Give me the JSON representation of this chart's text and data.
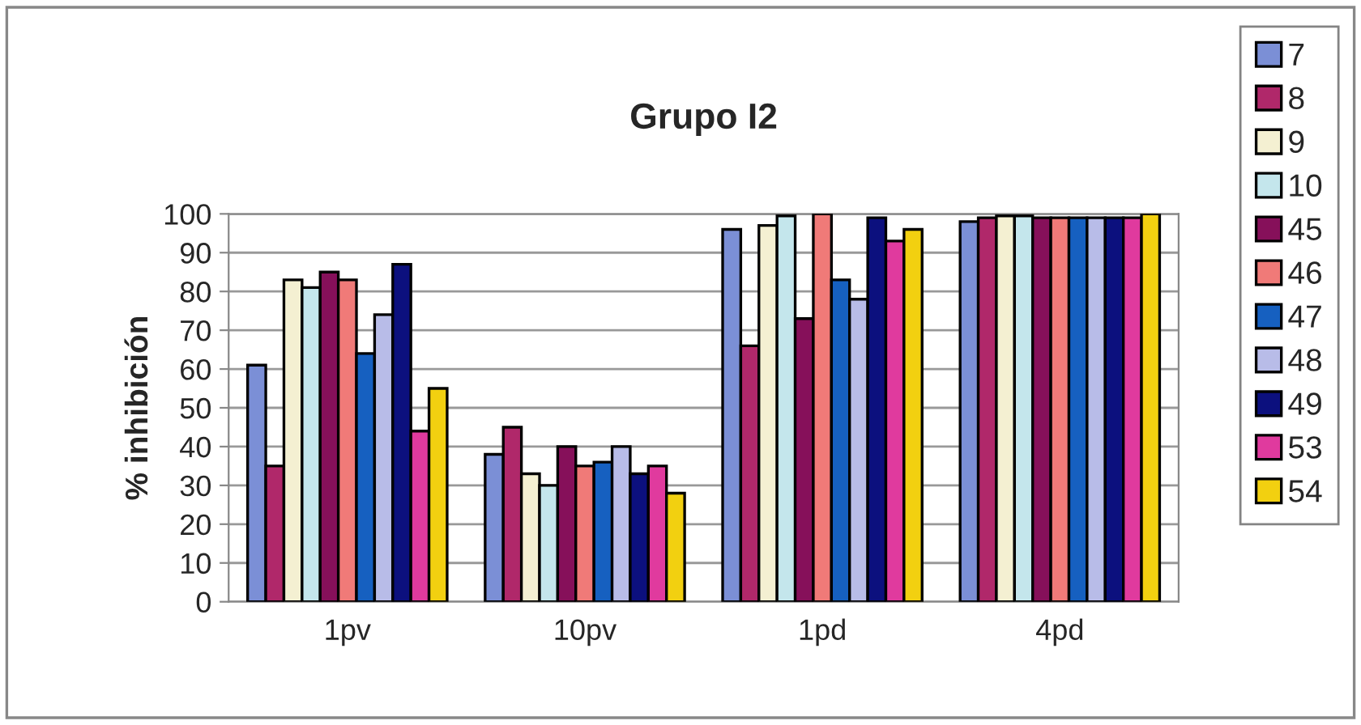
{
  "chart_data": {
    "type": "bar",
    "title": "Grupo I2",
    "ylabel": "% inhibición",
    "categories": [
      "1pv",
      "10pv",
      "1pd",
      "4pd"
    ],
    "series": [
      {
        "name": "7",
        "color": "#7b8fd6",
        "values": [
          61,
          38,
          96,
          98
        ]
      },
      {
        "name": "8",
        "color": "#b0286a",
        "values": [
          35,
          45,
          66,
          99
        ]
      },
      {
        "name": "9",
        "color": "#f4f0d2",
        "values": [
          83,
          33,
          97,
          99.5
        ]
      },
      {
        "name": "10",
        "color": "#c4e6ec",
        "values": [
          81,
          30,
          99.5,
          99.5
        ]
      },
      {
        "name": "45",
        "color": "#86105a",
        "values": [
          85,
          40,
          73,
          99
        ]
      },
      {
        "name": "46",
        "color": "#f07a78",
        "values": [
          83,
          35,
          100,
          99
        ]
      },
      {
        "name": "47",
        "color": "#1660c0",
        "values": [
          64,
          36,
          83,
          99
        ]
      },
      {
        "name": "48",
        "color": "#b8bce8",
        "values": [
          74,
          40,
          78,
          99
        ]
      },
      {
        "name": "49",
        "color": "#0c107e",
        "values": [
          87,
          33,
          99,
          99
        ]
      },
      {
        "name": "53",
        "color": "#e03a9e",
        "values": [
          44,
          35,
          93,
          99
        ]
      },
      {
        "name": "54",
        "color": "#f2d010",
        "values": [
          55,
          28,
          96,
          100
        ]
      }
    ],
    "ylim": [
      0,
      100
    ],
    "yticks": [
      0,
      10,
      20,
      30,
      40,
      50,
      60,
      70,
      80,
      90,
      100
    ],
    "grid": "y",
    "legend": "right"
  }
}
